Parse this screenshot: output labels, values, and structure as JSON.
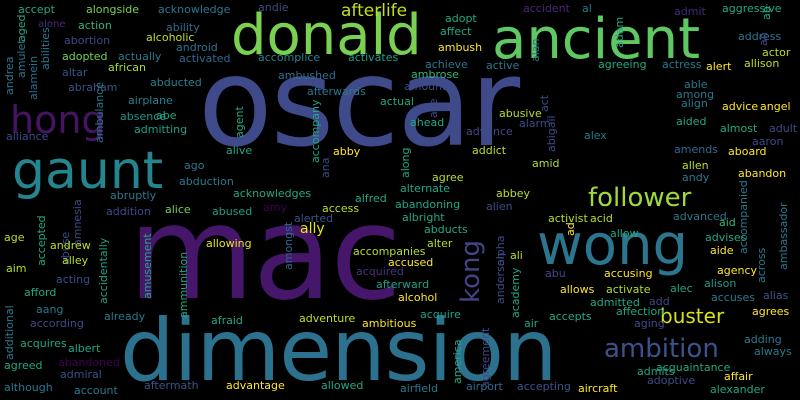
{
  "word_cloud": {
    "background": "#000000",
    "palette": [
      "#440154",
      "#482475",
      "#414487",
      "#355f8d",
      "#2a788e",
      "#21918c",
      "#22a884",
      "#44bf70",
      "#7ad151",
      "#bddf26",
      "#fde725"
    ],
    "words": [
      {
        "text": "oscar",
        "color": "#3e4a89"
      },
      {
        "text": "mac",
        "color": "#46166b"
      },
      {
        "text": "dimension",
        "color": "#2c728e"
      },
      {
        "text": "donald",
        "color": "#7ad151"
      },
      {
        "text": "ancient",
        "color": "#5ec962"
      },
      {
        "text": "wong",
        "color": "#2b758e"
      },
      {
        "text": "gaunt",
        "color": "#25858e"
      },
      {
        "text": "hong",
        "color": "#471365"
      },
      {
        "text": "follower",
        "color": "#a0da39"
      },
      {
        "text": "ambition",
        "color": "#3b528b"
      },
      {
        "text": "kong",
        "color": "#414487"
      },
      {
        "text": "buster",
        "color": "#d8e219"
      },
      {
        "text": "afterlife",
        "color": "#c2df23"
      },
      {
        "text": "accept",
        "color": "#22a884"
      },
      {
        "text": "alongside",
        "color": "#7ad151"
      },
      {
        "text": "acknowledge",
        "color": "#2a788e"
      },
      {
        "text": "alone",
        "color": "#482878"
      },
      {
        "text": "action",
        "color": "#2fb47c"
      },
      {
        "text": "ability",
        "color": "#31688e"
      },
      {
        "text": "abortion",
        "color": "#3e4989"
      },
      {
        "text": "alcoholic",
        "color": "#bddf26"
      },
      {
        "text": "android",
        "color": "#2c728e"
      },
      {
        "text": "adopted",
        "color": "#75d054"
      },
      {
        "text": "actually",
        "color": "#2a788e"
      },
      {
        "text": "activated",
        "color": "#31688e"
      },
      {
        "text": "accomplice",
        "color": "#26828e"
      },
      {
        "text": "activates",
        "color": "#1f9e89"
      },
      {
        "text": "achieve",
        "color": "#2a788e"
      },
      {
        "text": "altar",
        "color": "#3b528b"
      },
      {
        "text": "african",
        "color": "#a5db36"
      },
      {
        "text": "abraham",
        "color": "#3b528b"
      },
      {
        "text": "alamein",
        "color": "#2d708e"
      },
      {
        "text": "abducted",
        "color": "#26828e"
      },
      {
        "text": "ambushed",
        "color": "#2e6e8e"
      },
      {
        "text": "ambrose",
        "color": "#35b779"
      },
      {
        "text": "afterwards",
        "color": "#2a788e"
      },
      {
        "text": "airplane",
        "color": "#26828e"
      },
      {
        "text": "absence",
        "color": "#20928c"
      },
      {
        "text": "admitting",
        "color": "#1f9e89"
      },
      {
        "text": "alive",
        "color": "#22a884"
      },
      {
        "text": "ago",
        "color": "#2a788e"
      },
      {
        "text": "abduction",
        "color": "#2a788e"
      },
      {
        "text": "acknowledges",
        "color": "#22a884"
      },
      {
        "text": "abruptly",
        "color": "#2a788e"
      },
      {
        "text": "alfred",
        "color": "#22a884"
      },
      {
        "text": "addition",
        "color": "#3e4a89"
      },
      {
        "text": "alice",
        "color": "#6ece58"
      },
      {
        "text": "abused",
        "color": "#1f9e89"
      },
      {
        "text": "amy",
        "color": "#440154"
      },
      {
        "text": "access",
        "color": "#b5de2b"
      },
      {
        "text": "alerted",
        "color": "#3b528b"
      },
      {
        "text": "ally",
        "color": "#e5e419"
      },
      {
        "text": "allowing",
        "color": "#e5e419"
      },
      {
        "text": "amongst",
        "color": "#31688e"
      },
      {
        "text": "accompanies",
        "color": "#b5de2b"
      },
      {
        "text": "accused",
        "color": "#fde725"
      },
      {
        "text": "acquired",
        "color": "#46337e"
      },
      {
        "text": "afterward",
        "color": "#1fa187"
      },
      {
        "text": "alcohol",
        "color": "#fde725"
      },
      {
        "text": "adventure",
        "color": "#c2df23"
      },
      {
        "text": "ambitious",
        "color": "#fde725"
      },
      {
        "text": "acquire",
        "color": "#1f9e89"
      },
      {
        "text": "afraid",
        "color": "#22a884"
      },
      {
        "text": "ammunition",
        "color": "#22a884"
      },
      {
        "text": "amusement",
        "color": "#22a884"
      },
      {
        "text": "accidentally",
        "color": "#1fa187"
      },
      {
        "text": "already",
        "color": "#2a788e"
      },
      {
        "text": "albert",
        "color": "#22a884"
      },
      {
        "text": "abandoned",
        "color": "#440154"
      },
      {
        "text": "admiral",
        "color": "#3b528b"
      },
      {
        "text": "account",
        "color": "#2a788e"
      },
      {
        "text": "aftermath",
        "color": "#3b528b"
      },
      {
        "text": "advantage",
        "color": "#fde725"
      },
      {
        "text": "allowed",
        "color": "#22a884"
      },
      {
        "text": "airfield",
        "color": "#2a788e"
      },
      {
        "text": "airport",
        "color": "#31688e"
      },
      {
        "text": "accepting",
        "color": "#3b528b"
      },
      {
        "text": "aircraft",
        "color": "#fde725"
      },
      {
        "text": "admits",
        "color": "#22a884"
      },
      {
        "text": "adoptive",
        "color": "#3e4a89"
      },
      {
        "text": "acquaintance",
        "color": "#22a884"
      },
      {
        "text": "affair",
        "color": "#fde725"
      },
      {
        "text": "alexander",
        "color": "#22a884"
      },
      {
        "text": "always",
        "color": "#2a788e"
      },
      {
        "text": "adding",
        "color": "#2a788e"
      },
      {
        "text": "agrees",
        "color": "#fde725"
      },
      {
        "text": "alias",
        "color": "#3b528b"
      },
      {
        "text": "accuses",
        "color": "#2a788e"
      },
      {
        "text": "alison",
        "color": "#1f9e89"
      },
      {
        "text": "alec",
        "color": "#22a884"
      },
      {
        "text": "agency",
        "color": "#fde725"
      },
      {
        "text": "aide",
        "color": "#fde725"
      },
      {
        "text": "advises",
        "color": "#22a884"
      },
      {
        "text": "aid",
        "color": "#35b779"
      },
      {
        "text": "advanced",
        "color": "#2a788e"
      },
      {
        "text": "abandon",
        "color": "#fde725"
      },
      {
        "text": "aboard",
        "color": "#fde725"
      },
      {
        "text": "amends",
        "color": "#31688e"
      },
      {
        "text": "allen",
        "color": "#b5de2b"
      },
      {
        "text": "andy",
        "color": "#2a788e"
      },
      {
        "text": "advice",
        "color": "#fde725"
      },
      {
        "text": "angel",
        "color": "#fde725"
      },
      {
        "text": "almost",
        "color": "#22a884"
      },
      {
        "text": "adult",
        "color": "#3e4a89"
      },
      {
        "text": "aaron",
        "color": "#3e4a89"
      },
      {
        "text": "aided",
        "color": "#22a884"
      },
      {
        "text": "align",
        "color": "#2a788e"
      },
      {
        "text": "among",
        "color": "#2a788e"
      },
      {
        "text": "able",
        "color": "#2a788e"
      },
      {
        "text": "actor",
        "color": "#b5de2b"
      },
      {
        "text": "allison",
        "color": "#b5de2b"
      },
      {
        "text": "alert",
        "color": "#fde725"
      },
      {
        "text": "actress",
        "color": "#2a788e"
      },
      {
        "text": "agreeing",
        "color": "#22a884"
      },
      {
        "text": "active",
        "color": "#2a788e"
      },
      {
        "text": "adopt",
        "color": "#22a884"
      },
      {
        "text": "affect",
        "color": "#22a884"
      },
      {
        "text": "ambush",
        "color": "#fde725"
      },
      {
        "text": "accident",
        "color": "#482878"
      },
      {
        "text": "al",
        "color": "#2a788e"
      },
      {
        "text": "admit",
        "color": "#482878"
      },
      {
        "text": "aggressive",
        "color": "#22a884"
      },
      {
        "text": "address",
        "color": "#2a788e"
      },
      {
        "text": "adam",
        "color": "#22a884"
      },
      {
        "text": "alan",
        "color": "#2a788e"
      },
      {
        "text": "ab",
        "color": "#22a884"
      },
      {
        "text": "abe",
        "color": "#22a884"
      },
      {
        "text": "andrea",
        "color": "#2a788e"
      },
      {
        "text": "amulet",
        "color": "#2a788e"
      },
      {
        "text": "aged",
        "color": "#22a884"
      },
      {
        "text": "abilities",
        "color": "#2a788e"
      },
      {
        "text": "ambulance",
        "color": "#2a788e"
      },
      {
        "text": "alliance",
        "color": "#3e4a89"
      },
      {
        "text": "agent",
        "color": "#22a884"
      },
      {
        "text": "accompany",
        "color": "#22a884"
      },
      {
        "text": "ana",
        "color": "#3e4a89"
      },
      {
        "text": "abby",
        "color": "#fde725"
      },
      {
        "text": "along",
        "color": "#22a884"
      },
      {
        "text": "actual",
        "color": "#22a884"
      },
      {
        "text": "ahead",
        "color": "#22a884"
      },
      {
        "text": "abigail",
        "color": "#3e4a89"
      },
      {
        "text": "amount",
        "color": "#3e4a89"
      },
      {
        "text": "ace",
        "color": "#3e4a89"
      },
      {
        "text": "alarm",
        "color": "#3e4a89"
      },
      {
        "text": "act",
        "color": "#3e4a89"
      },
      {
        "text": "abusive",
        "color": "#b5de2b"
      },
      {
        "text": "advance",
        "color": "#3e4a89"
      },
      {
        "text": "addict",
        "color": "#b5de2b"
      },
      {
        "text": "alex",
        "color": "#2a788e"
      },
      {
        "text": "agree",
        "color": "#b5de2b"
      },
      {
        "text": "amid",
        "color": "#b5de2b"
      },
      {
        "text": "abbey",
        "color": "#b5de2b"
      },
      {
        "text": "alternate",
        "color": "#22a884"
      },
      {
        "text": "abandoning",
        "color": "#22a884"
      },
      {
        "text": "albright",
        "color": "#22a884"
      },
      {
        "text": "alien",
        "color": "#3e4a89"
      },
      {
        "text": "ad",
        "color": "#fde725"
      },
      {
        "text": "activist",
        "color": "#b5de2b"
      },
      {
        "text": "acid",
        "color": "#b5de2b"
      },
      {
        "text": "allow",
        "color": "#22a884"
      },
      {
        "text": "abducts",
        "color": "#22a884"
      },
      {
        "text": "alter",
        "color": "#b5de2b"
      },
      {
        "text": "ali",
        "color": "#b5de2b"
      },
      {
        "text": "alpha",
        "color": "#3e4a89"
      },
      {
        "text": "anderson",
        "color": "#3e4a89"
      },
      {
        "text": "academy",
        "color": "#22a884"
      },
      {
        "text": "abu",
        "color": "#3e4a89"
      },
      {
        "text": "allows",
        "color": "#fde725"
      },
      {
        "text": "activate",
        "color": "#b5de2b"
      },
      {
        "text": "accusing",
        "color": "#fde725"
      },
      {
        "text": "admitted",
        "color": "#22a884"
      },
      {
        "text": "add",
        "color": "#3e4a89"
      },
      {
        "text": "affection",
        "color": "#22a884"
      },
      {
        "text": "accepts",
        "color": "#22a884"
      },
      {
        "text": "aging",
        "color": "#3e4a89"
      },
      {
        "text": "air",
        "color": "#22a884"
      },
      {
        "text": "agreement",
        "color": "#3e4a89"
      },
      {
        "text": "america",
        "color": "#22a884"
      },
      {
        "text": "accompanied",
        "color": "#2a788e"
      },
      {
        "text": "across",
        "color": "#2a788e"
      },
      {
        "text": "ambassador",
        "color": "#2a788e"
      },
      {
        "text": "age",
        "color": "#b5de2b"
      },
      {
        "text": "accepted",
        "color": "#22a884"
      },
      {
        "text": "abuse",
        "color": "#3e4a89"
      },
      {
        "text": "amnesia",
        "color": "#3e4a89"
      },
      {
        "text": "aim",
        "color": "#b5de2b"
      },
      {
        "text": "andrew",
        "color": "#b5de2b"
      },
      {
        "text": "alley",
        "color": "#b5de2b"
      },
      {
        "text": "allie",
        "color": "#3e4a89"
      },
      {
        "text": "acting",
        "color": "#3e4a89"
      },
      {
        "text": "afford",
        "color": "#22a884"
      },
      {
        "text": "additional",
        "color": "#2a788e"
      },
      {
        "text": "aang",
        "color": "#2a788e"
      },
      {
        "text": "according",
        "color": "#3e4a89"
      },
      {
        "text": "acquires",
        "color": "#22a884"
      },
      {
        "text": "agreed",
        "color": "#22a884"
      },
      {
        "text": "although",
        "color": "#2a788e"
      },
      {
        "text": "andie",
        "color": "#3e4a89"
      },
      {
        "text": "al",
        "color": "#2a788e"
      },
      {
        "text": "ah",
        "color": "#3e4a89"
      }
    ]
  }
}
